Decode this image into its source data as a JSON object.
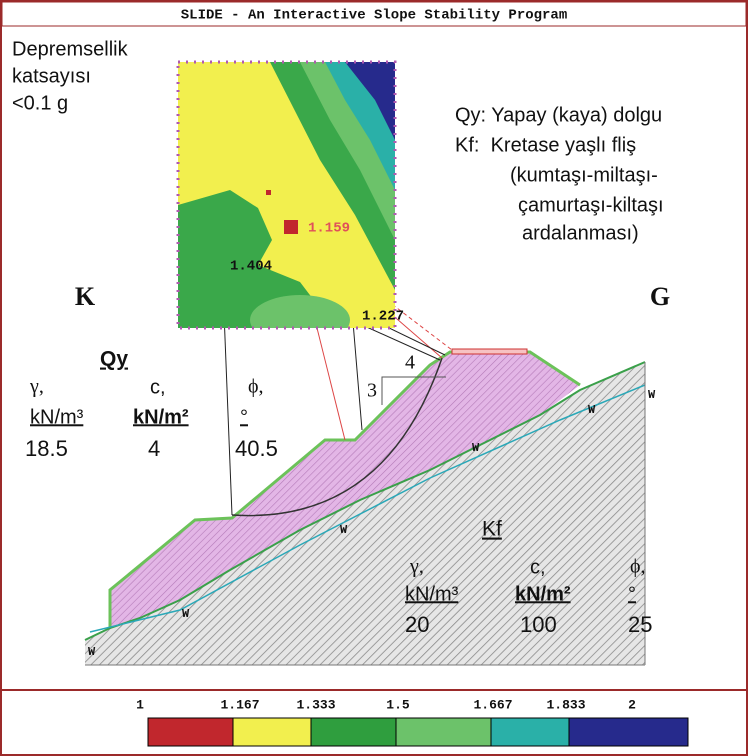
{
  "window_title": "SLIDE - An Interactive Slope Stability Program",
  "seismic_note": [
    "Depremsellik",
    "katsayısı",
    "<0.1 g"
  ],
  "legend": [
    "Qy: Yapay (kaya) dolgu",
    "Kf:  Kretase yaşlı fliş",
    "(kumtaşı-miltaşı-",
    "çamurtaşı-kiltaşı",
    "ardalanması)"
  ],
  "directions": [
    "K",
    "G"
  ],
  "safety_factors": [
    "1.159",
    "1.404",
    "1.227"
  ],
  "slope_ratio": [
    "4",
    "3"
  ],
  "materials": [
    {
      "name": "Qy",
      "headers": [
        "γ,",
        "c,",
        "ϕ,"
      ],
      "units": [
        "kN/m³",
        "kN/m²",
        "°"
      ],
      "values": [
        "18.5",
        "4",
        "40.5"
      ]
    },
    {
      "name": "Kf",
      "headers": [
        "γ,",
        "c,",
        "ϕ,"
      ],
      "units": [
        "kN/m³",
        "kN/m²",
        "°"
      ],
      "values": [
        "20",
        "100",
        "25"
      ]
    }
  ],
  "water_markers": [
    "W",
    "W",
    "W",
    "W",
    "W",
    "W"
  ],
  "color_scale": [
    "1",
    "1.167",
    "1.333",
    "1.5",
    "1.667",
    "1.833",
    "2"
  ]
}
